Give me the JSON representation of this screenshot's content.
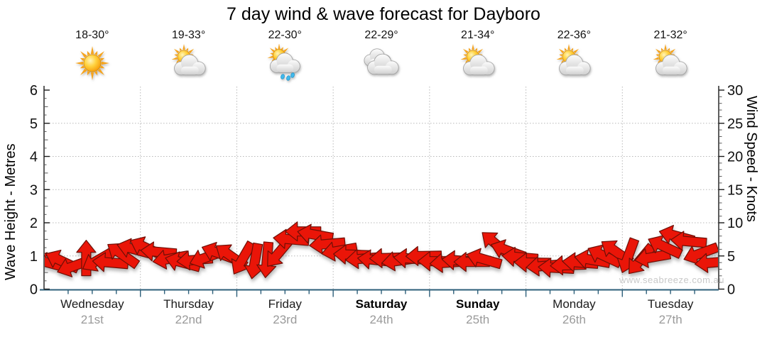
{
  "title": "7 day wind & wave forecast for Dayboro",
  "watermark": "www.seabreeze.com.au",
  "days": [
    {
      "name": "Wednesday",
      "date": "21st",
      "weekend": false,
      "temp": "18-30°",
      "icon": "sunny"
    },
    {
      "name": "Thursday",
      "date": "22nd",
      "weekend": false,
      "temp": "19-33°",
      "icon": "partly-cloudy"
    },
    {
      "name": "Friday",
      "date": "23rd",
      "weekend": false,
      "temp": "22-30°",
      "icon": "sun-showers"
    },
    {
      "name": "Saturday",
      "date": "24th",
      "weekend": true,
      "temp": "22-29°",
      "icon": "cloudy"
    },
    {
      "name": "Sunday",
      "date": "25th",
      "weekend": true,
      "temp": "21-34°",
      "icon": "partly-cloudy"
    },
    {
      "name": "Monday",
      "date": "26th",
      "weekend": false,
      "temp": "22-36°",
      "icon": "partly-cloudy"
    },
    {
      "name": "Tuesday",
      "date": "27th",
      "weekend": false,
      "temp": "21-32°",
      "icon": "partly-cloudy"
    }
  ],
  "chart_data": {
    "type": "scatter",
    "marker": "wind-direction-arrow",
    "title": "7 day wind & wave forecast for Dayboro",
    "ylabel_left": "Wave Height - Metres",
    "ylabel_right": "Wind Speed - Knots",
    "ylim_left": [
      0,
      6
    ],
    "ylim_right": [
      0,
      30
    ],
    "left_ticks": [
      "0",
      "1",
      "2",
      "3",
      "4",
      "5",
      "6"
    ],
    "right_ticks": [
      "0",
      "5",
      "10",
      "15",
      "20",
      "25",
      "30"
    ],
    "grid": true,
    "legend": "none",
    "categories": [
      "Wednesday 21st",
      "Thursday 22nd",
      "Friday 23rd",
      "Saturday 24th",
      "Sunday 25th",
      "Monday 26th",
      "Tuesday 27th"
    ],
    "points_per_day": 8,
    "time_step_hours": 3,
    "wind_series": [
      {
        "day": "Wednesday",
        "speeds_knots": [
          3.9,
          4.2,
          3.5,
          4.7,
          4.4,
          4.0,
          5.2,
          6.0
        ],
        "directions_deg": [
          195,
          205,
          160,
          270,
          150,
          185,
          215,
          195
        ]
      },
      {
        "day": "Thursday",
        "speeds_knots": [
          6.2,
          5.6,
          4.6,
          4.0,
          4.4,
          4.8,
          5.4,
          5.0
        ],
        "directions_deg": [
          205,
          185,
          170,
          195,
          175,
          160,
          200,
          215
        ]
      },
      {
        "day": "Friday",
        "speeds_knots": [
          4.6,
          4.2,
          4.4,
          5.5,
          7.5,
          8.7,
          8.2,
          6.8
        ],
        "directions_deg": [
          120,
          100,
          95,
          130,
          185,
          180,
          190,
          175
        ]
      },
      {
        "day": "Saturday",
        "speeds_knots": [
          5.8,
          5.2,
          4.6,
          4.4,
          4.7,
          4.3,
          4.6,
          5.0
        ],
        "directions_deg": [
          170,
          182,
          175,
          186,
          178,
          172,
          184,
          179
        ]
      },
      {
        "day": "Sunday",
        "speeds_knots": [
          4.2,
          4.0,
          4.3,
          4.1,
          4.5,
          6.8,
          5.8,
          4.8
        ],
        "directions_deg": [
          180,
          176,
          184,
          180,
          196,
          220,
          200,
          185
        ]
      },
      {
        "day": "Monday",
        "speeds_knots": [
          4.0,
          3.5,
          3.2,
          3.6,
          4.0,
          4.4,
          5.0,
          5.6
        ],
        "directions_deg": [
          181,
          175,
          183,
          178,
          184,
          190,
          205,
          215
        ]
      },
      {
        "day": "Tuesday",
        "speeds_knots": [
          5.0,
          4.4,
          4.8,
          6.4,
          8.0,
          7.2,
          5.4,
          4.0
        ],
        "directions_deg": [
          110,
          130,
          170,
          205,
          195,
          185,
          160,
          175
        ]
      }
    ],
    "colors": {
      "arrow_fill": "#ea1508",
      "arrow_outline": "#6e0f06",
      "x_axis": "#2d5f7a",
      "y_axis": "#1a1a1a",
      "gridline": "#b8b8b8",
      "tick_label": "#111111",
      "date_label": "#9a9a9a"
    }
  }
}
